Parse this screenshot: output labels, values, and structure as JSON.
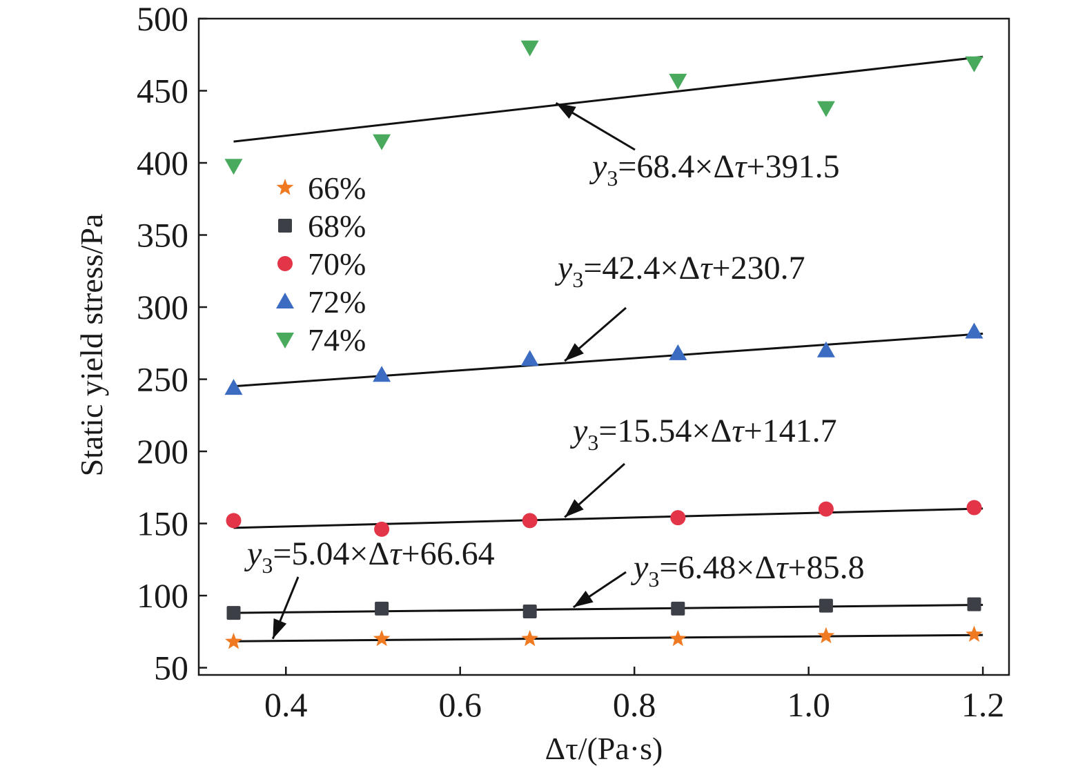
{
  "chart_data": {
    "type": "scatter",
    "xlabel": "Δτ/(Pa·s)",
    "ylabel": "Static yield stress/Pa",
    "xlim": [
      0.3,
      1.23
    ],
    "ylim": [
      45,
      500
    ],
    "xticks": [
      "0.4",
      "0.6",
      "0.8",
      "1.0",
      "1.2"
    ],
    "xtick_values": [
      0.4,
      0.6,
      0.8,
      1.0,
      1.2
    ],
    "yticks": [
      "50",
      "100",
      "150",
      "200",
      "250",
      "300",
      "350",
      "400",
      "450",
      "500"
    ],
    "ytick_values": [
      50,
      100,
      150,
      200,
      250,
      300,
      350,
      400,
      450,
      500
    ],
    "grid": false,
    "legend_position": "left, upper-middle",
    "series": [
      {
        "name": "66%",
        "marker": "star",
        "color": "#f07a22",
        "x": [
          0.34,
          0.51,
          0.68,
          0.85,
          1.02,
          1.19
        ],
        "y": [
          68,
          70,
          70,
          70,
          72,
          73
        ]
      },
      {
        "name": "68%",
        "marker": "square",
        "color": "#3d3f46",
        "x": [
          0.34,
          0.51,
          0.68,
          0.85,
          1.02,
          1.19
        ],
        "y": [
          88,
          91,
          89,
          91,
          93,
          94
        ]
      },
      {
        "name": "70%",
        "marker": "circle",
        "color": "#e23548",
        "x": [
          0.34,
          0.51,
          0.68,
          0.85,
          1.02,
          1.19
        ],
        "y": [
          152,
          146,
          152,
          154,
          160,
          161
        ]
      },
      {
        "name": "72%",
        "marker": "triangle-up",
        "color": "#3b6cc2",
        "x": [
          0.34,
          0.51,
          0.68,
          0.85,
          1.02,
          1.19
        ],
        "y": [
          244,
          253,
          264,
          268,
          270,
          283
        ]
      },
      {
        "name": "74%",
        "marker": "triangle-down",
        "color": "#49aa5e",
        "x": [
          0.34,
          0.51,
          0.68,
          0.85,
          1.02,
          1.19
        ],
        "y": [
          398,
          415,
          480,
          457,
          438,
          469
        ]
      }
    ],
    "fit_lines": [
      {
        "series": "66%",
        "slope": 5.04,
        "intercept": 66.64,
        "x_range": [
          0.34,
          1.2
        ],
        "label_var": "y",
        "label_sub": "3",
        "label_rest": "=5.04×Δτ+66.64",
        "arrow_to_x": 0.385
      },
      {
        "series": "68%",
        "slope": 6.48,
        "intercept": 85.8,
        "x_range": [
          0.34,
          1.2
        ],
        "label_var": "y",
        "label_sub": "3",
        "label_rest": "=6.48×Δτ+85.8",
        "arrow_to_x": 0.73
      },
      {
        "series": "70%",
        "slope": 15.54,
        "intercept": 141.7,
        "x_range": [
          0.34,
          1.2
        ],
        "label_var": "y",
        "label_sub": "3",
        "label_rest": "=15.54×Δτ+141.7",
        "arrow_to_x": 0.72
      },
      {
        "series": "72%",
        "slope": 42.4,
        "intercept": 230.7,
        "x_range": [
          0.34,
          1.2
        ],
        "label_var": "y",
        "label_sub": "3",
        "label_rest": "=42.4×Δτ+230.7",
        "arrow_to_x": 0.72
      },
      {
        "series": "74%",
        "slope": 68.4,
        "intercept": 391.5,
        "x_range": [
          0.34,
          1.2
        ],
        "label_var": "y",
        "label_sub": "3",
        "label_rest": "=68.4×Δτ+391.5",
        "arrow_to_x": 0.71
      }
    ]
  }
}
